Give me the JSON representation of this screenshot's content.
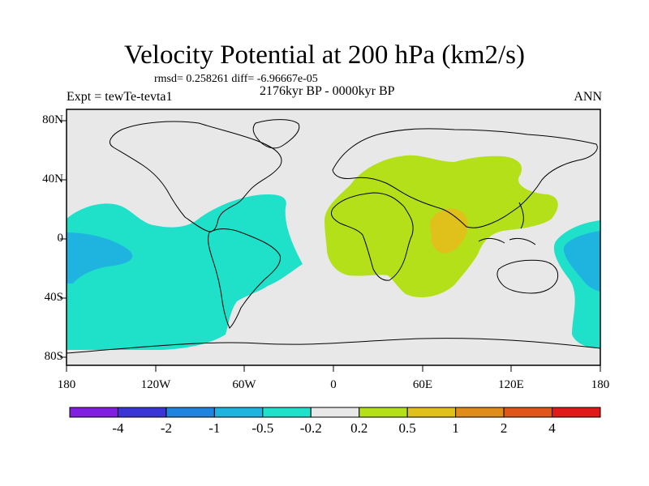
{
  "title": "Velocity Potential at 200 hPa (km2/s)",
  "stats": "rmsd= 0.258261 diff= -6.96667e-05",
  "period": "2176kyr BP - 0000kyr BP",
  "experiment": "Expt = tewTe-tevta1",
  "season": "ANN",
  "y_axis": {
    "ticks": [
      {
        "lat": 80,
        "label": "80N"
      },
      {
        "lat": 40,
        "label": "40N"
      },
      {
        "lat": 0,
        "label": "0"
      },
      {
        "lat": -40,
        "label": "40S"
      },
      {
        "lat": -80,
        "label": "80S"
      }
    ]
  },
  "x_axis": {
    "ticks": [
      {
        "lon": -180,
        "label": "180"
      },
      {
        "lon": -120,
        "label": "120W"
      },
      {
        "lon": -60,
        "label": "60W"
      },
      {
        "lon": 0,
        "label": "0"
      },
      {
        "lon": 60,
        "label": "60E"
      },
      {
        "lon": 120,
        "label": "120E"
      },
      {
        "lon": 180,
        "label": "180"
      }
    ]
  },
  "colorbar": {
    "colors": [
      "#7f20e0",
      "#3a36d6",
      "#1f84e0",
      "#1fb4e0",
      "#1fe0c8",
      "#e8e8e8",
      "#b4e01a",
      "#e0c01a",
      "#e08c1a",
      "#e0561a",
      "#e01a1a"
    ],
    "labels": [
      "-4",
      "-2",
      "-1",
      "-0.5",
      "-0.2",
      "0.2",
      "0.5",
      "1",
      "2",
      "4"
    ]
  },
  "regions": [
    {
      "name": "pacific-negative",
      "level": "-0.2",
      "color": "#1fe0c8"
    },
    {
      "name": "pacific-core",
      "level": "-0.5",
      "color": "#1fb4e0"
    },
    {
      "name": "west-pacific-negative",
      "level": "-0.2",
      "color": "#1fe0c8"
    },
    {
      "name": "west-pacific-core",
      "level": "-0.5",
      "color": "#1fb4e0"
    },
    {
      "name": "afro-asia-positive",
      "level": "0.2",
      "color": "#b4e01a"
    },
    {
      "name": "india-core",
      "level": "0.5",
      "color": "#e0c01a"
    }
  ]
}
